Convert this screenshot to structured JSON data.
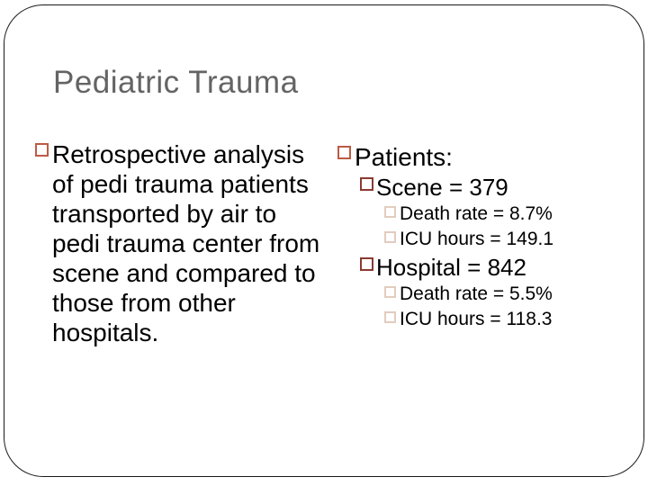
{
  "slide": {
    "title": "Pediatric Trauma",
    "left_column": {
      "text": "Retrospective analysis of pedi trauma patients transported by air to pedi trauma center from scene and compared to those from other hospitals."
    },
    "right_column": {
      "heading": "Patients:",
      "groups": [
        {
          "label": "Scene = 379",
          "details": [
            "Death rate = 8.7%",
            "ICU hours = 149.1"
          ]
        },
        {
          "label": "Hospital = 842",
          "details": [
            "Death rate = 5.5%",
            "ICU hours = 118.3"
          ]
        }
      ]
    },
    "colors": {
      "background": "#FFFFFF",
      "frame_border": "#1A1A1A",
      "title": "#646464",
      "body_text": "#000000",
      "bullet_level1": "#BC5B45",
      "bullet_level2": "#8B3A32",
      "bullet_level3": "#E2CCBF"
    }
  }
}
